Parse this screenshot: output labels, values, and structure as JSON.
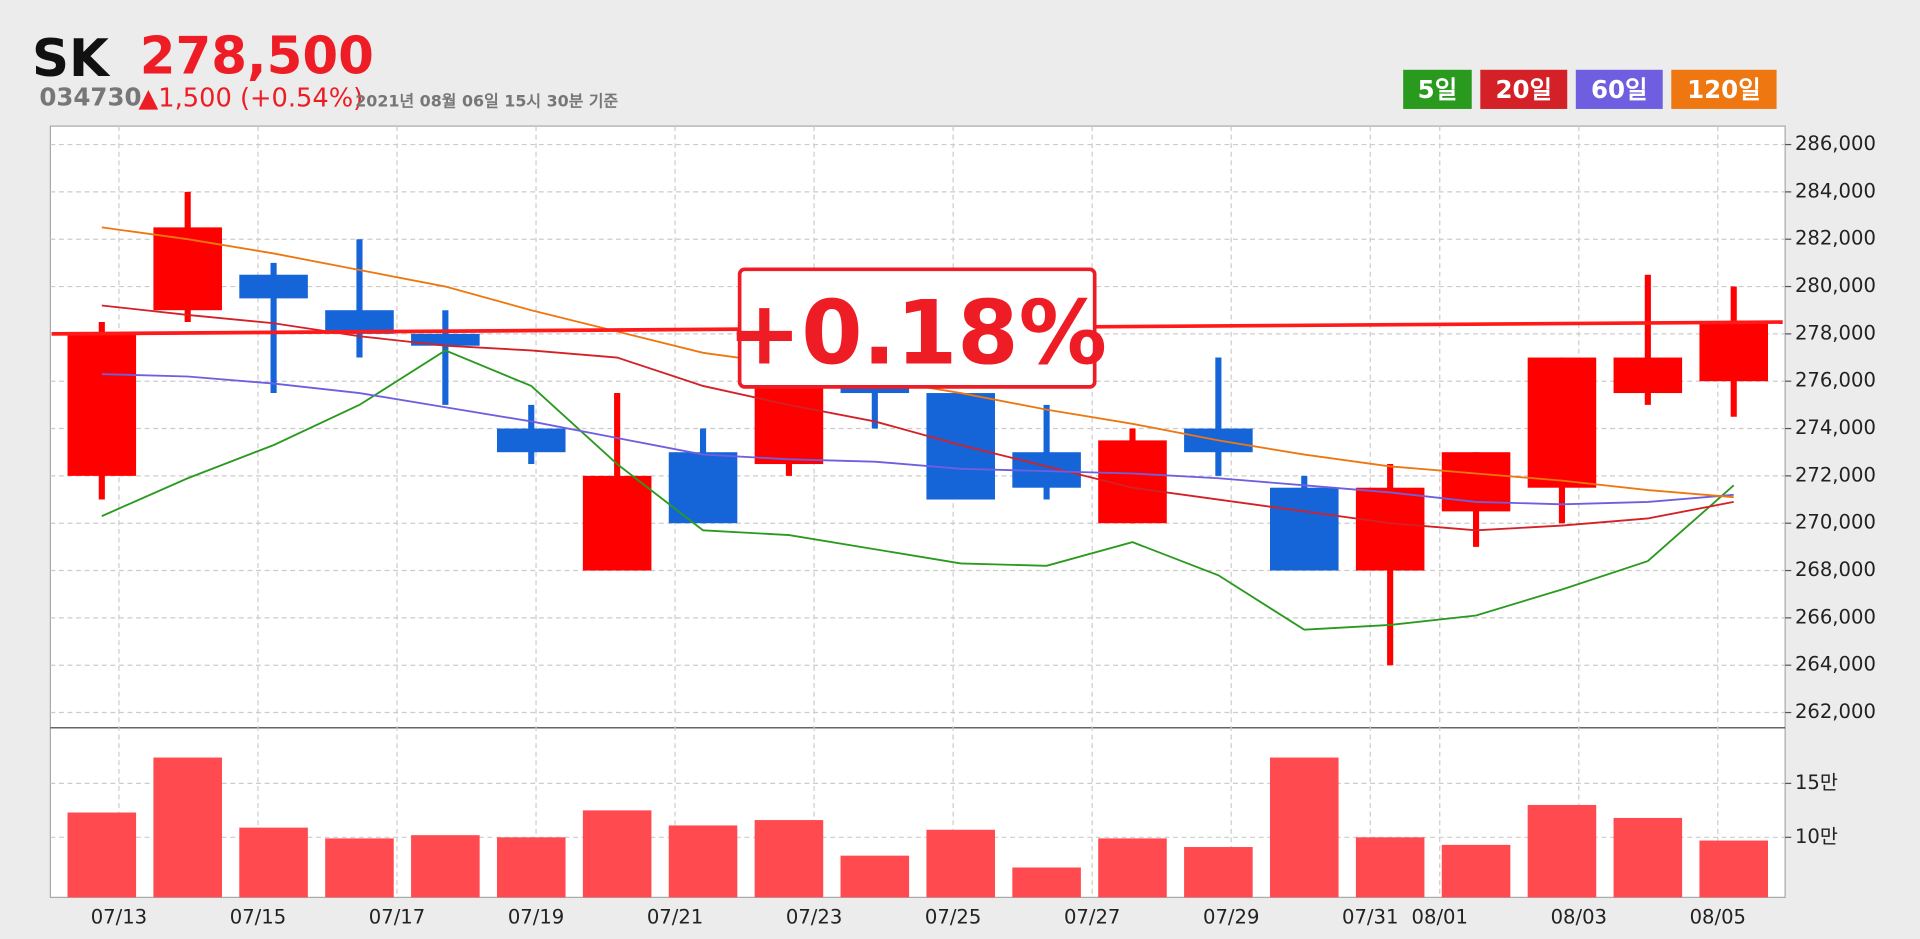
{
  "chart_data": {
    "type": "candlestick",
    "title": "SK",
    "price": "278,500",
    "code": "034730",
    "change": "▲1,500 (+0.54%)",
    "timestamp": "2021년 08월 06일 15시 30분 기준",
    "annotation": "+0.18%",
    "up_color": "#ff0000",
    "down_color": "#1565d8",
    "grid": true,
    "ylim": [
      261380,
      286780
    ],
    "yticks": [
      {
        "value": 286000,
        "label": "286,000"
      },
      {
        "value": 284000,
        "label": "284,000"
      },
      {
        "value": 282000,
        "label": "282,000"
      },
      {
        "value": 280000,
        "label": "280,000"
      },
      {
        "value": 278000,
        "label": "278,000"
      },
      {
        "value": 276000,
        "label": "276,000"
      },
      {
        "value": 274000,
        "label": "274,000"
      },
      {
        "value": 272000,
        "label": "272,000"
      },
      {
        "value": 270000,
        "label": "270,000"
      },
      {
        "value": 268000,
        "label": "268,000"
      },
      {
        "value": 266000,
        "label": "266,000"
      },
      {
        "value": 264000,
        "label": "264,000"
      },
      {
        "value": 262000,
        "label": "262,000"
      }
    ],
    "x_labels": [
      "07/13",
      "07/15",
      "07/17",
      "07/19",
      "07/21",
      "07/23",
      "07/25",
      "07/27",
      "07/29",
      "07/31",
      "08/01",
      "08/03",
      "08/05"
    ],
    "candles": {
      "open": [
        272000,
        279000,
        280500,
        279000,
        278000,
        274000,
        268000,
        273000,
        272500,
        276000,
        275500,
        273000,
        270000,
        274000,
        271500,
        268000,
        270500,
        271500,
        275500,
        276000
      ],
      "high": [
        278500,
        284000,
        281000,
        282000,
        279000,
        275000,
        275500,
        274000,
        277000,
        277000,
        275500,
        275000,
        274000,
        277000,
        272000,
        272500,
        273000,
        277000,
        280500,
        280000
      ],
      "low": [
        271000,
        278500,
        275500,
        277000,
        275000,
        272500,
        268000,
        270000,
        272000,
        274000,
        271000,
        271000,
        270000,
        272000,
        268000,
        264000,
        269000,
        270000,
        275000,
        274500
      ],
      "close": [
        278000,
        282500,
        279500,
        278000,
        277500,
        273000,
        272000,
        270000,
        276000,
        275500,
        271000,
        271500,
        273500,
        273000,
        268000,
        271500,
        273000,
        277000,
        277000,
        278500
      ]
    },
    "moving_averages": [
      {
        "name": "5일",
        "color": "#2a9a1e",
        "values": [
          270300,
          271900,
          273300,
          275000,
          277300,
          275800,
          272500,
          269700,
          269500,
          268900,
          268300,
          268200,
          269200,
          267800,
          265500,
          265700,
          266100,
          267200,
          268400,
          271600
        ]
      },
      {
        "name": "20일",
        "color": "#d42027",
        "values": [
          279200,
          278800,
          278450,
          277900,
          277500,
          277300,
          277000,
          275800,
          275000,
          274300,
          273300,
          272400,
          271500,
          271000,
          270500,
          270000,
          269700,
          269900,
          270200,
          270900
        ]
      },
      {
        "name": "60일",
        "color": "#6f5fe0",
        "values": [
          276300,
          276200,
          275900,
          275500,
          274900,
          274300,
          273600,
          272900,
          272700,
          272600,
          272300,
          272200,
          272100,
          271900,
          271600,
          271300,
          270900,
          270800,
          270900,
          271200
        ]
      },
      {
        "name": "120일",
        "color": "#ee7711",
        "values": [
          282500,
          282000,
          281400,
          280700,
          280000,
          279000,
          278100,
          277200,
          276700,
          276100,
          275500,
          274800,
          274200,
          273500,
          272900,
          272400,
          272100,
          271800,
          271400,
          271100
        ]
      }
    ],
    "trendline": {
      "color": "#ff1a1a",
      "values": [
        278000,
        278500
      ]
    },
    "volume": {
      "color": "#ff4a50",
      "ylim": [
        4.43,
        20.1
      ],
      "yticks": [
        {
          "value": 15,
          "label": "15만"
        },
        {
          "value": 10,
          "label": "10만"
        }
      ],
      "values": [
        12.3,
        17.4,
        10.9,
        9.9,
        10.2,
        10.0,
        12.5,
        11.1,
        11.6,
        8.3,
        10.7,
        7.2,
        9.9,
        9.1,
        17.4,
        10.0,
        9.3,
        13.0,
        11.8,
        9.7
      ]
    }
  }
}
